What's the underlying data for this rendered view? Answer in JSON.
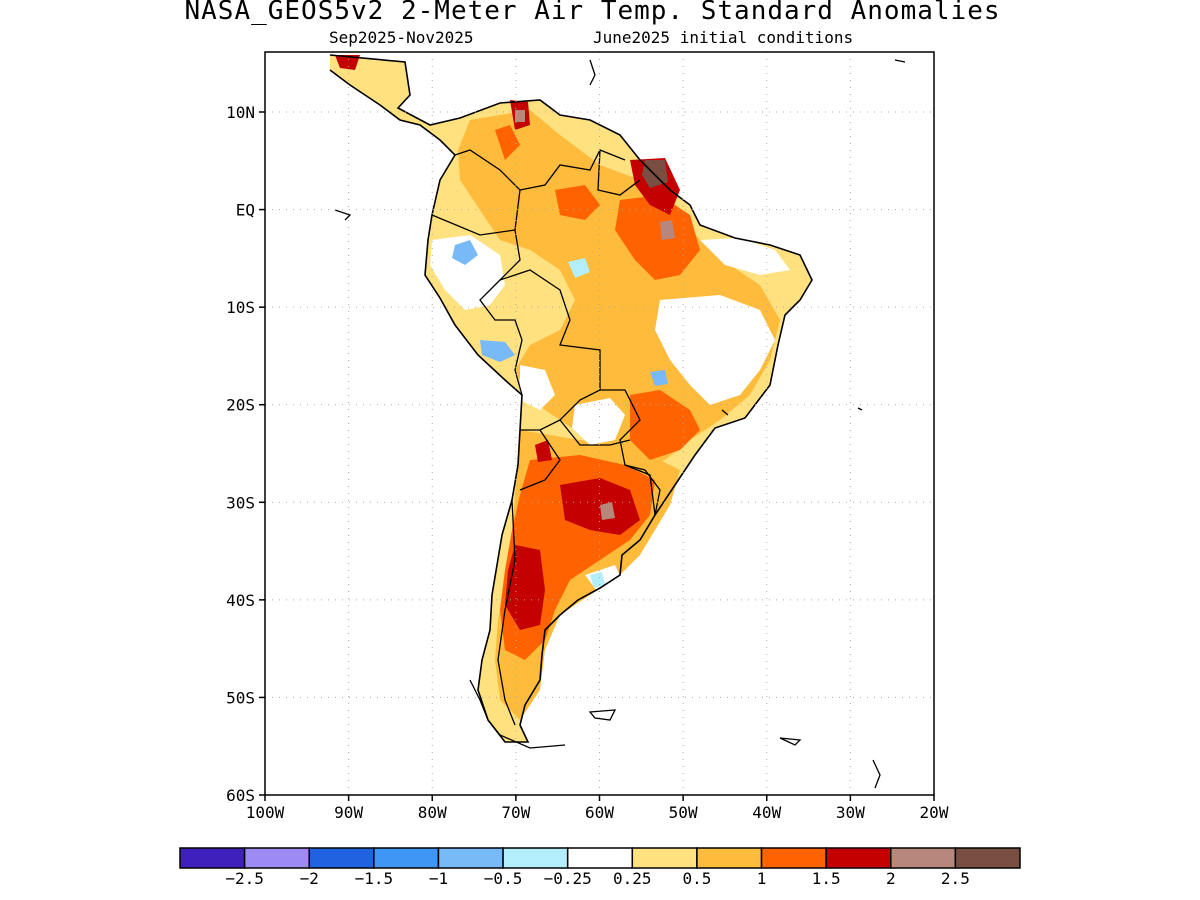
{
  "title": "NASA_GEOS5v2 2-Meter Air Temp. Standard Anomalies",
  "subtitle_period": "Sep2025-Nov2025",
  "subtitle_init": "June2025 initial conditions",
  "map": {
    "lon_range": [
      -100,
      -20
    ],
    "lat_range": [
      -60,
      15
    ],
    "lat_ticks": [
      {
        "value": 10,
        "label": "10N"
      },
      {
        "value": 0,
        "label": "EQ"
      },
      {
        "value": -10,
        "label": "10S"
      },
      {
        "value": -20,
        "label": "20S"
      },
      {
        "value": -30,
        "label": "30S"
      },
      {
        "value": -40,
        "label": "40S"
      },
      {
        "value": -50,
        "label": "50S"
      },
      {
        "value": -60,
        "label": "60S"
      }
    ],
    "lon_ticks": [
      {
        "value": -100,
        "label": "100W"
      },
      {
        "value": -90,
        "label": "90W"
      },
      {
        "value": -80,
        "label": "80W"
      },
      {
        "value": -70,
        "label": "70W"
      },
      {
        "value": -60,
        "label": "60W"
      },
      {
        "value": -50,
        "label": "50W"
      },
      {
        "value": -40,
        "label": "40W"
      },
      {
        "value": -30,
        "label": "30W"
      },
      {
        "value": -20,
        "label": "20W"
      }
    ],
    "grid": "dotted"
  },
  "colorbar": {
    "colors": [
      "#3f20bd",
      "#9e8af3",
      "#2162e0",
      "#3f96f4",
      "#78baf8",
      "#b2eefb",
      "#ffffff",
      "#ffe180",
      "#ffbc3c",
      "#ff6200",
      "#c40000",
      "#b8877c",
      "#7a4f42"
    ],
    "labels": [
      "-2.5",
      "-2",
      "-1.5",
      "-1",
      "-0.5",
      "-0.25",
      "0.25",
      "0.5",
      "1",
      "1.5",
      "2",
      "2.5"
    ]
  }
}
